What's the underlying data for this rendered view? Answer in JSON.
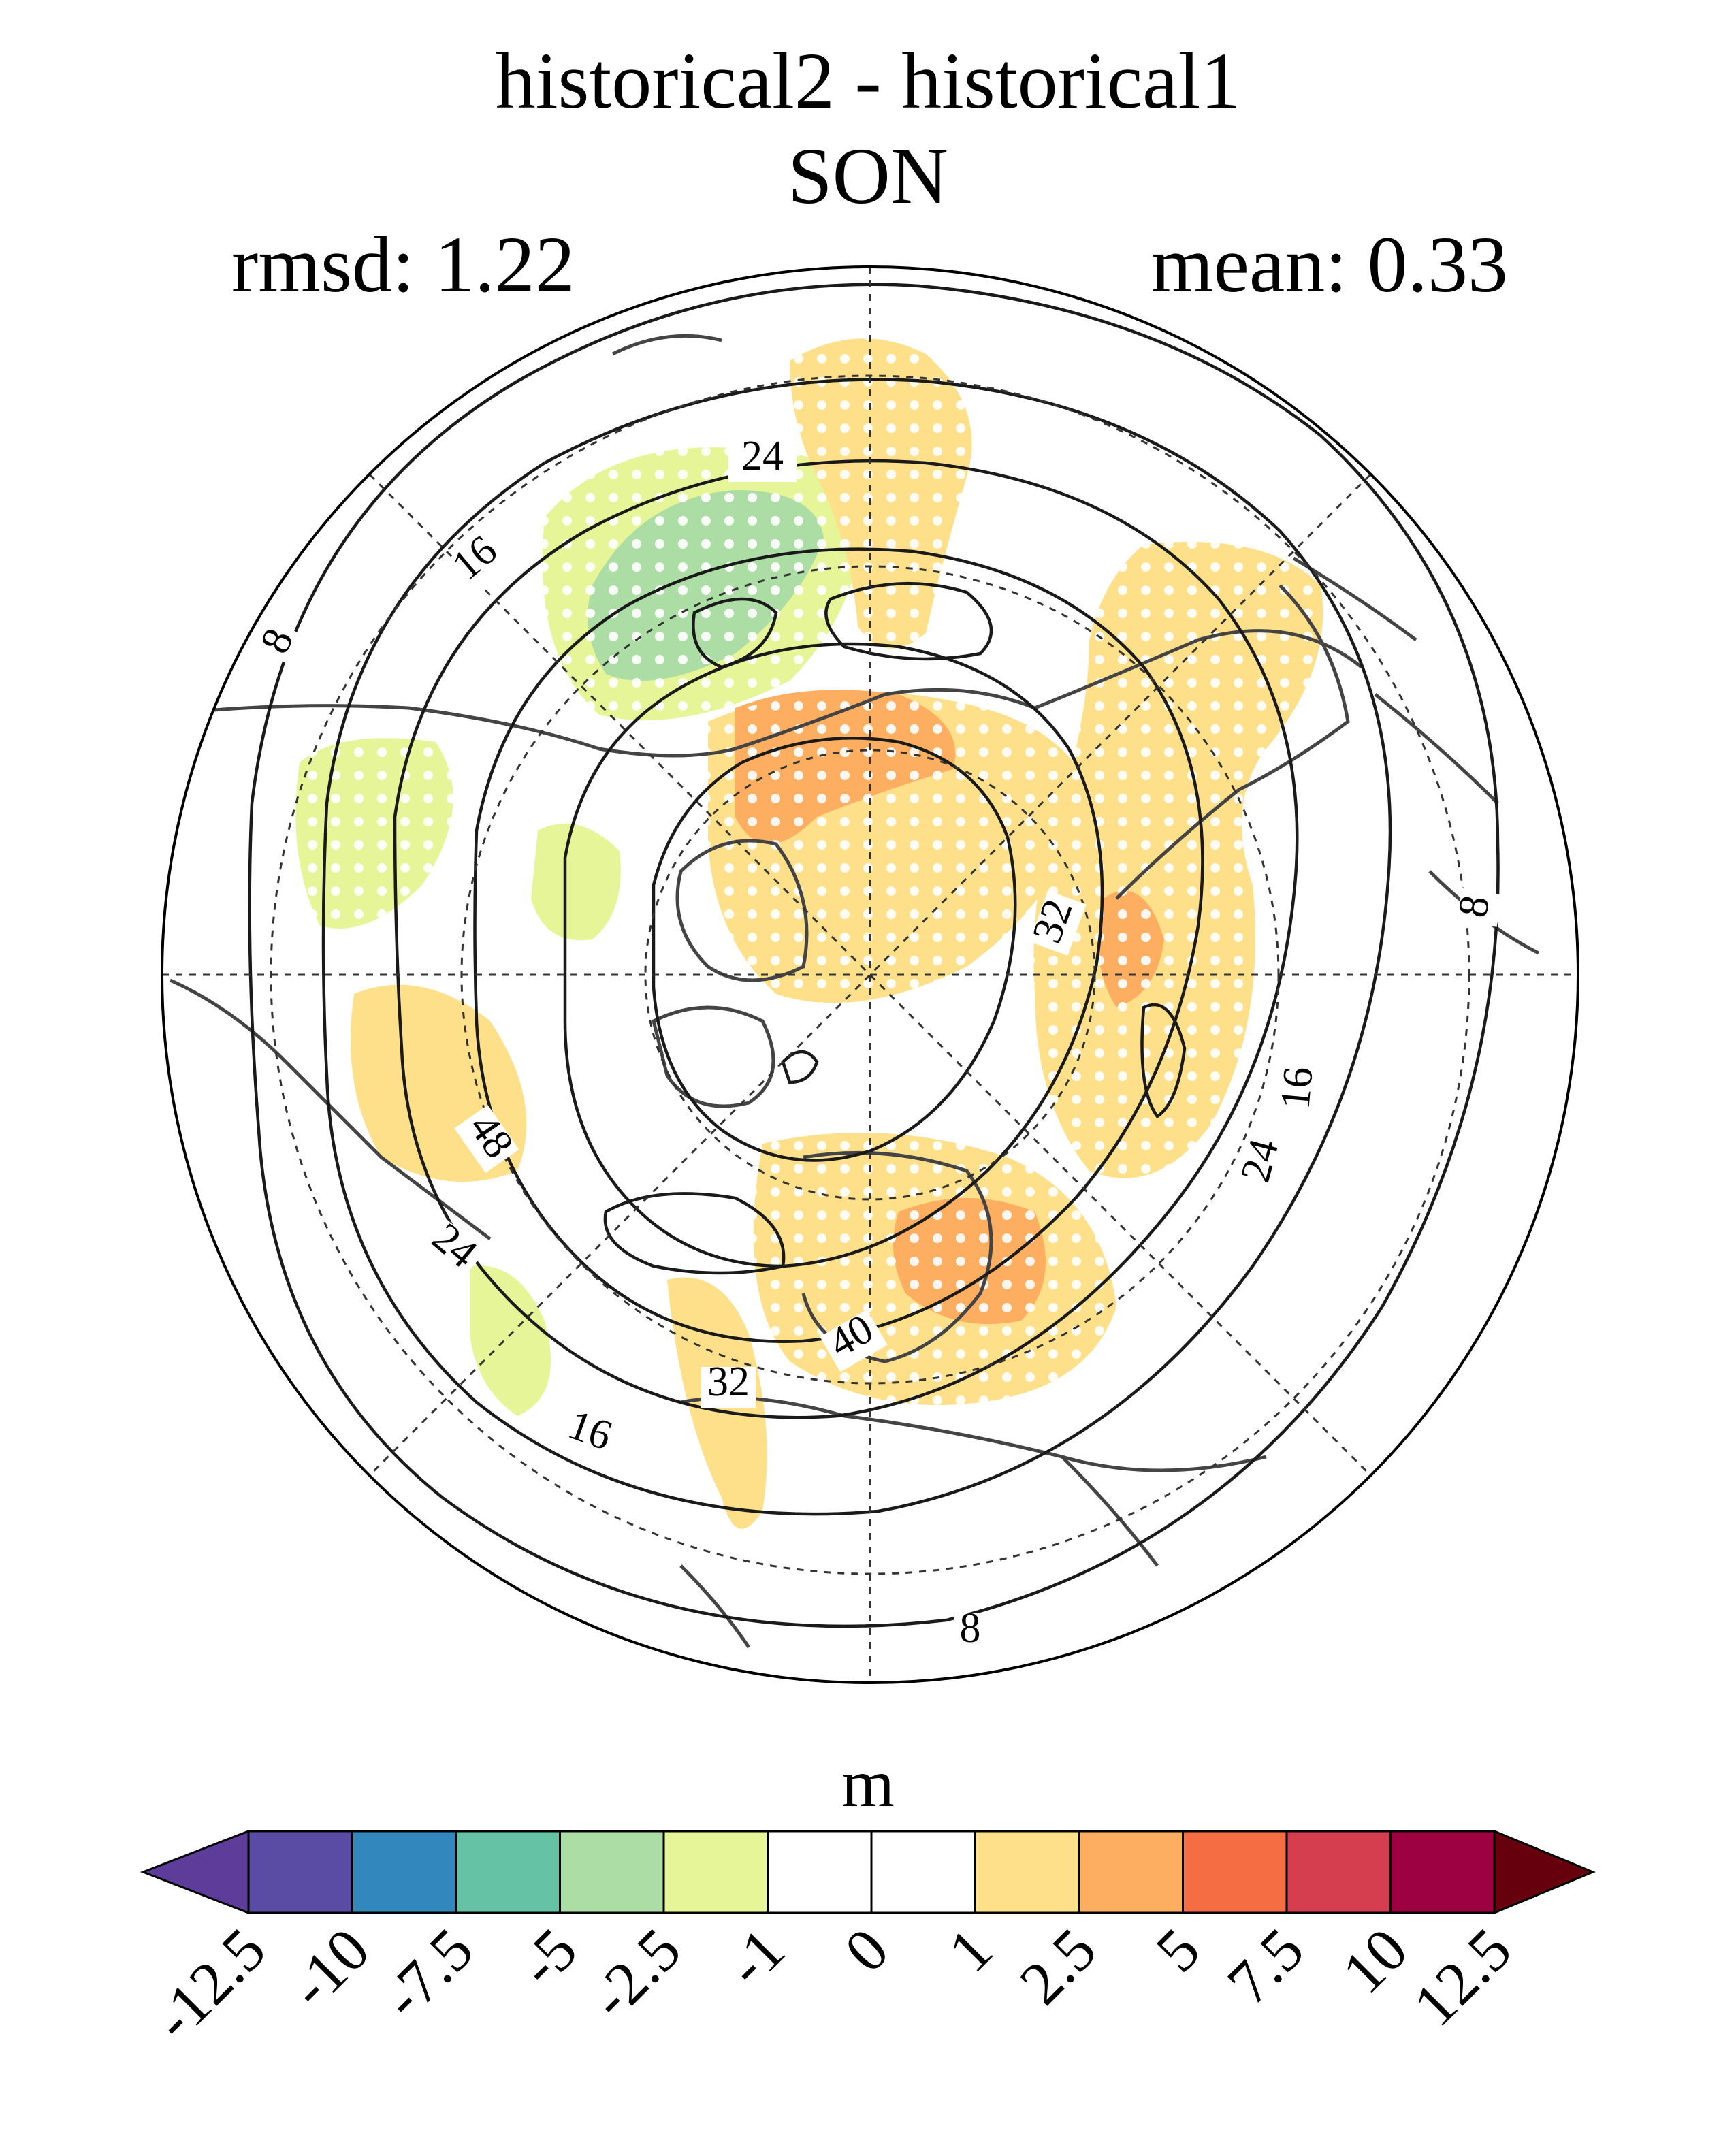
{
  "title": {
    "line1": "historical2 - historical1",
    "line2": "SON"
  },
  "stats": {
    "rmsd": "rmsd: 1.22",
    "mean": "mean: 0.33"
  },
  "map": {
    "projection": "north polar stereographic",
    "contour_labels": [
      "24",
      "16",
      "8",
      "8",
      "32",
      "16",
      "24",
      "48",
      "24",
      "32",
      "40",
      "16",
      "8"
    ],
    "stippling": "white dots mark significant differences"
  },
  "colorbar": {
    "units": "m",
    "ticks": [
      "-12.5",
      "-10",
      "-7.5",
      "-5",
      "-2.5",
      "-1",
      "0",
      "1",
      "2.5",
      "5",
      "7.5",
      "10",
      "12.5"
    ],
    "colors": [
      "#5e3c99",
      "#5a4ca5",
      "#3288bd",
      "#66c2a5",
      "#abdda4",
      "#e6f598",
      "#ffffff",
      "#ffffff",
      "#fee08b",
      "#fdae61",
      "#f46d43",
      "#d53e4f",
      "#9e0142",
      "#67000d"
    ]
  }
}
